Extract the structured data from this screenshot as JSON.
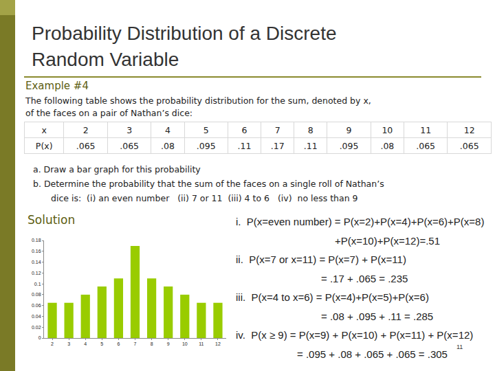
{
  "slide": {
    "title_lines": [
      "Probability Distribution of a Discrete",
      "Random Variable"
    ],
    "example": "Example #4",
    "intro_lines": [
      "The following table shows the probability distribution for the sum, denoted by x,",
      "of the faces on a pair of Nathan’s dice:"
    ],
    "table": {
      "rows": [
        [
          "x",
          "2",
          "3",
          "4",
          "5",
          "6",
          "7",
          "8",
          "9",
          "10",
          "11",
          "12"
        ],
        [
          "P(x)",
          ".065",
          ".065",
          ".08",
          ".095",
          ".11",
          ".17",
          ".11",
          ".095",
          ".08",
          ".065",
          ".065"
        ]
      ]
    },
    "questions": [
      [
        "a. Draw a bar graph for this probability"
      ],
      [
        "b. Determine the probability that the sum of the faces on a single roll of Nathan’s",
        "dice is:  (i) an even number   (ii) 7 or 11  (iii) 4 to 6   (iv)  no less than 9"
      ]
    ],
    "solution_heading": "Solution",
    "solution_lines": [
      [
        "i.  P(x=even number) = P(x=2)+P(x=4)+P(x=6)+P(x=8)",
        "+P(x=10)+P(x=12)=.51"
      ],
      [
        "ii.  P(x=7 or x=11) = P(x=7) + P(x=11)",
        "= .17 + .065 = .235"
      ],
      [
        "iii.  P(x=4 to x=6) = P(x=4)+P(x=5)+P(x=6)",
        "= .08 + .095 + .11 = .285"
      ],
      [
        "iv.  P(x ≥ 9) = P(x=9) + P(x=10) + P(x=11) + P(x=12)",
        "= .095 + .08 + .065 + .065 = .305"
      ]
    ],
    "page_number": "11"
  },
  "chart_data": {
    "type": "bar",
    "categories": [
      "2",
      "3",
      "4",
      "5",
      "6",
      "7",
      "8",
      "9",
      "10",
      "11",
      "12"
    ],
    "values": [
      0.065,
      0.065,
      0.08,
      0.095,
      0.11,
      0.17,
      0.11,
      0.095,
      0.08,
      0.065,
      0.065
    ],
    "color": "#99cc00",
    "ylim": [
      0,
      0.18
    ],
    "yticks": [
      0,
      0.02,
      0.04,
      0.06,
      0.08,
      0.1,
      0.12,
      0.14,
      0.16,
      0.18
    ],
    "grid": false
  }
}
